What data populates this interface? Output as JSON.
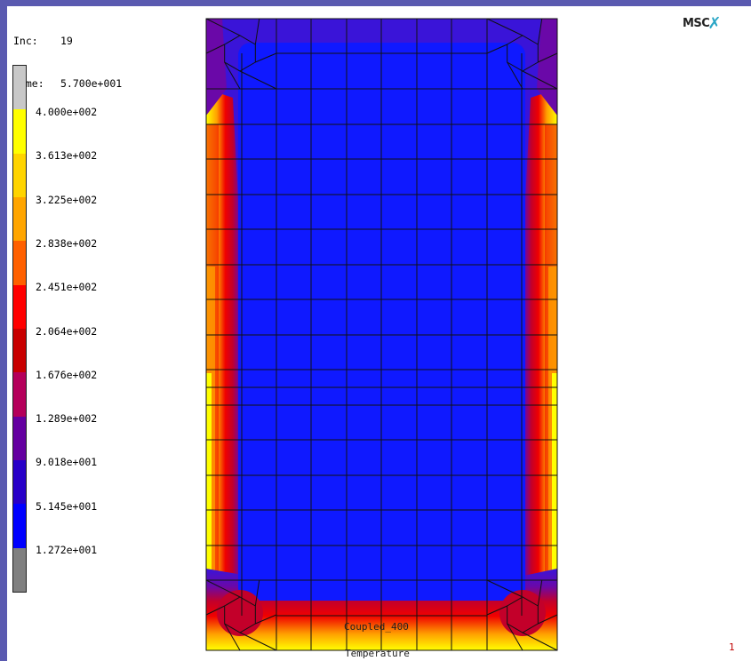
{
  "increment": {
    "label": "Inc:",
    "value": "19"
  },
  "time": {
    "label": "Time:",
    "value": "5.700e+001"
  },
  "legend": {
    "labels": [
      "4.000e+002",
      "3.613e+002",
      "3.225e+002",
      "2.838e+002",
      "2.451e+002",
      "2.064e+002",
      "1.676e+002",
      "1.289e+002",
      "9.018e+001",
      "5.145e+001",
      "1.272e+001"
    ],
    "colors": [
      "#c8c8c8",
      "#ffff00",
      "#ffd400",
      "#ffa500",
      "#ff6000",
      "#ff0000",
      "#c80000",
      "#b4005a",
      "#6400a0",
      "#2800c8",
      "#0000ff",
      "#808080"
    ]
  },
  "logo": {
    "text": "MSC"
  },
  "model": {
    "name": "Coupled_400",
    "result": "Temperature"
  },
  "viewport_number": "1",
  "field_colors": {
    "blue": "#0f19ff",
    "blue_violet": "#3a14d8",
    "violet": "#6a08a8",
    "purple": "#960070",
    "crimson": "#c3002a",
    "red": "#f00000",
    "orange_red": "#ff5a00",
    "orange": "#ffa000",
    "yellow": "#ffff00"
  }
}
